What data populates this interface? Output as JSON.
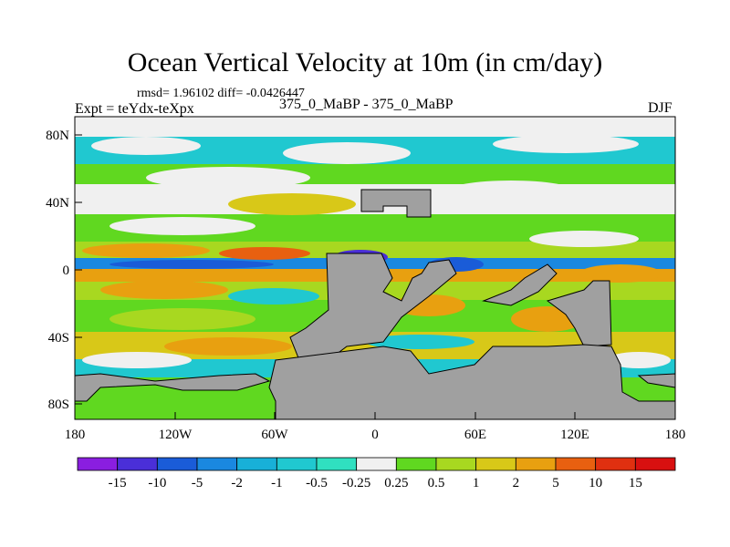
{
  "title": "Ocean Vertical Velocity at 10m (in cm/day)",
  "stats": "rmsd= 1.96102 diff= -0.0426447",
  "experiment": "Expt = teYdx-teXpx",
  "case": "375_0_MaBP - 375_0_MaBP",
  "season": "DJF",
  "map": {
    "lat_labels": [
      "80N",
      "40N",
      "0",
      "40S",
      "80S"
    ],
    "lat_values": [
      80,
      40,
      0,
      -40,
      -80
    ],
    "lon_labels": [
      "180",
      "120W",
      "60W",
      "0",
      "60E",
      "120E",
      "180"
    ],
    "lon_values": [
      -180,
      -120,
      -60,
      0,
      60,
      120,
      180
    ],
    "lat_range": [
      -90,
      90
    ],
    "lon_range": [
      -180,
      180
    ],
    "land_color": "#a0a0a0"
  },
  "colorbar": {
    "labels": [
      "-15",
      "-10",
      "-5",
      "-2",
      "-1",
      "-0.5",
      "-0.25",
      "0.25",
      "0.5",
      "1",
      "2",
      "5",
      "10",
      "15"
    ],
    "colors": [
      "#8a1ee0",
      "#4a2fd8",
      "#1a5cd8",
      "#1a88e0",
      "#18b0d8",
      "#20c8d0",
      "#30e0c0",
      "#f0f0f0",
      "#60d820",
      "#a8d820",
      "#d8c818",
      "#e8a010",
      "#e86010",
      "#e03010",
      "#d81010"
    ]
  }
}
